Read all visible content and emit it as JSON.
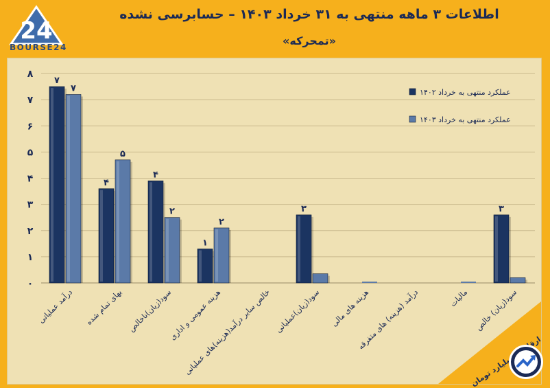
{
  "logo": {
    "text": "BOURSE24",
    "icon": "bourse24-logo-icon"
  },
  "title": "اطلاعات ۳ ماهه منتهی به ۳۱ خرداد ۱۴۰۳ – حسابرسی نشده",
  "subtitle": "«تمحرکه»",
  "units_note": "ارقام به میلیارد تومان",
  "badge_icon": "trend-up-icon",
  "colors": {
    "series1": "#1b3461",
    "series2": "#5b7aa8",
    "background": "#f6b01c",
    "plot": "#efe1b4"
  },
  "chart_data": {
    "type": "bar",
    "categories": [
      "درآمد عملیاتی",
      "بهای تمام شده",
      "سود(زیان)ناخالص",
      "هزینه عمومی و اداری",
      "خالص سایر درآمد(هزینه)های عملیاتی",
      "سود(زیان)عملیاتی",
      "هزینه های مالی",
      "درآمد (هزینه) های متفرقه",
      "مالیات",
      "سود(زیان) خالص"
    ],
    "series": [
      {
        "name": "عملکرد منتهی به خرداد ۱۴۰۲",
        "values": [
          7.5,
          3.6,
          3.9,
          1.3,
          0,
          2.6,
          0,
          0,
          0,
          2.6
        ],
        "labels": [
          "۷",
          "۴",
          "۴",
          "۱",
          "",
          "۳",
          "",
          "",
          "",
          "۳"
        ]
      },
      {
        "name": "عملکرد منتهی به خرداد ۱۴۰۳",
        "values": [
          7.2,
          4.7,
          2.5,
          2.1,
          0,
          0.35,
          0.05,
          0,
          0.05,
          0.2
        ],
        "labels": [
          "۷",
          "۵",
          "۲",
          "۲",
          "",
          "",
          "",
          "",
          "",
          ""
        ]
      }
    ],
    "yticks": [
      "۰",
      "۱",
      "۲",
      "۳",
      "۴",
      "۵",
      "۶",
      "۷",
      "۸"
    ],
    "ylim": [
      0,
      8
    ],
    "grid": true,
    "legend_position": "top-right"
  }
}
